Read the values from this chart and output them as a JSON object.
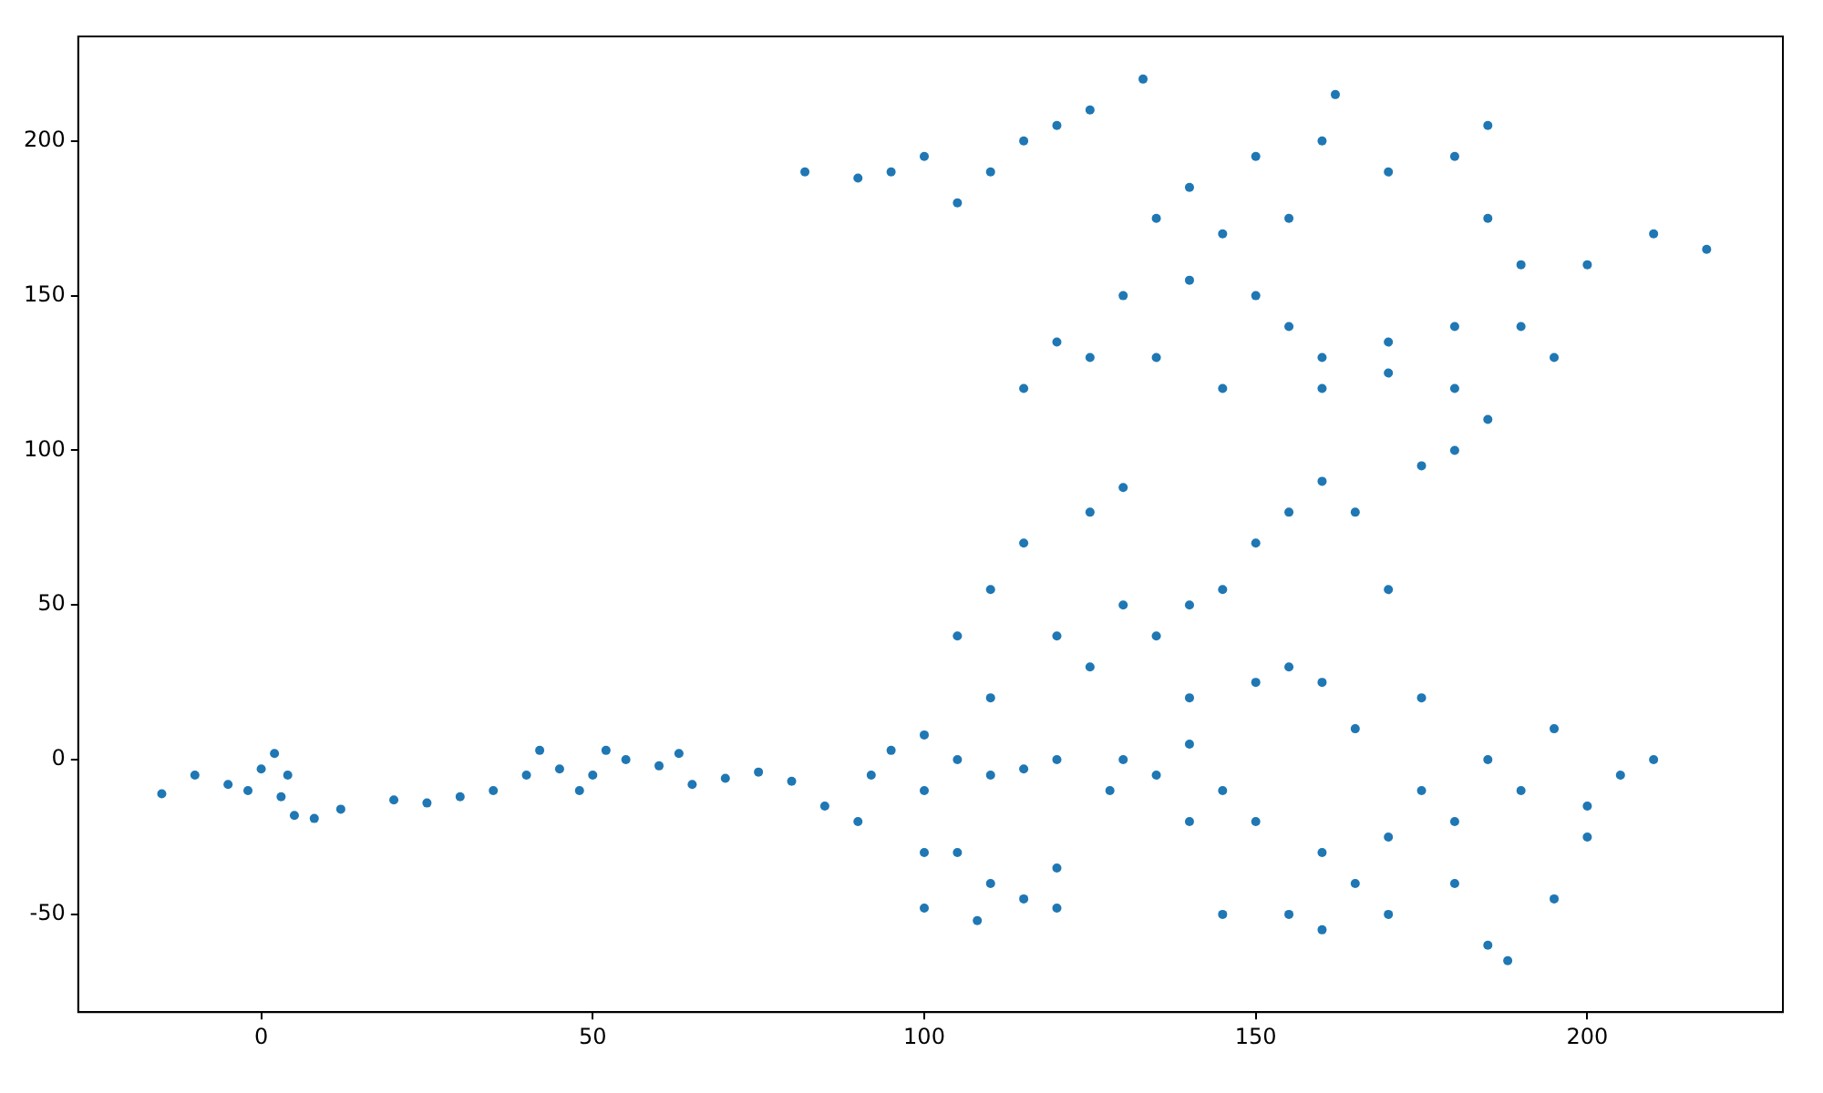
{
  "chart_data": {
    "type": "scatter",
    "marker": "circle",
    "grid": false,
    "legend": false,
    "xlim": [
      -27.6,
      229.5
    ],
    "ylim": [
      -81.6,
      233.8
    ],
    "xticks": [
      0,
      50,
      100,
      150,
      200
    ],
    "yticks": [
      -50,
      0,
      50,
      100,
      150,
      200
    ],
    "series": [
      {
        "color": "#1f77b4",
        "x": [
          -15,
          -10,
          -5,
          0,
          2,
          4,
          -2,
          3,
          5,
          8,
          12,
          20,
          25,
          30,
          35,
          40,
          42,
          45,
          48,
          50,
          55,
          52,
          60,
          63,
          65,
          70,
          75,
          80,
          85,
          90,
          92,
          95,
          100,
          105,
          100,
          110,
          115,
          120,
          105,
          110,
          115,
          120,
          100,
          108,
          120,
          110,
          105,
          110,
          115,
          120,
          125,
          130,
          125,
          130,
          140,
          145,
          135,
          140,
          140,
          145,
          135,
          150,
          155,
          150,
          155,
          160,
          165,
          170,
          175,
          180,
          185,
          180,
          170,
          160,
          155,
          150,
          140,
          130,
          125,
          115,
          120,
          135,
          145,
          160,
          170,
          180,
          190,
          195,
          200,
          210,
          218,
          190,
          185,
          180,
          185,
          170,
          160,
          162,
          150,
          140,
          135,
          145,
          155,
          133,
          125,
          115,
          110,
          100,
          95,
          90,
          82,
          105,
          120,
          150,
          155,
          160,
          170,
          175,
          180,
          185,
          190,
          195,
          200,
          205,
          210,
          200,
          185,
          188,
          195,
          180,
          170,
          165,
          160,
          145,
          165,
          175,
          160,
          130,
          128,
          140,
          100
        ],
        "values": [
          -11,
          -5,
          -8,
          -3,
          2,
          -5,
          -10,
          -12,
          -18,
          -19,
          -16,
          -13,
          -14,
          -12,
          -10,
          -5,
          3,
          -3,
          -10,
          -5,
          0,
          3,
          -2,
          2,
          -8,
          -6,
          -4,
          -7,
          -15,
          -20,
          -5,
          3,
          8,
          0,
          -10,
          -5,
          -3,
          0,
          -30,
          -40,
          -45,
          -35,
          -48,
          -52,
          -48,
          20,
          40,
          55,
          70,
          40,
          30,
          50,
          80,
          88,
          50,
          55,
          40,
          20,
          5,
          -10,
          -5,
          25,
          30,
          70,
          80,
          90,
          80,
          55,
          95,
          100,
          110,
          120,
          125,
          130,
          140,
          150,
          155,
          150,
          130,
          120,
          135,
          130,
          120,
          120,
          135,
          140,
          140,
          130,
          160,
          170,
          165,
          160,
          175,
          195,
          205,
          190,
          200,
          215,
          195,
          185,
          175,
          170,
          175,
          220,
          210,
          200,
          190,
          195,
          190,
          188,
          190,
          180,
          205,
          -20,
          -50,
          -30,
          -25,
          -10,
          -20,
          0,
          -10,
          10,
          -15,
          -5,
          0,
          -25,
          -60,
          -65,
          -45,
          -40,
          -50,
          -40,
          -55,
          -50,
          10,
          20,
          25,
          0,
          -10,
          -20,
          -30
        ]
      }
    ]
  }
}
